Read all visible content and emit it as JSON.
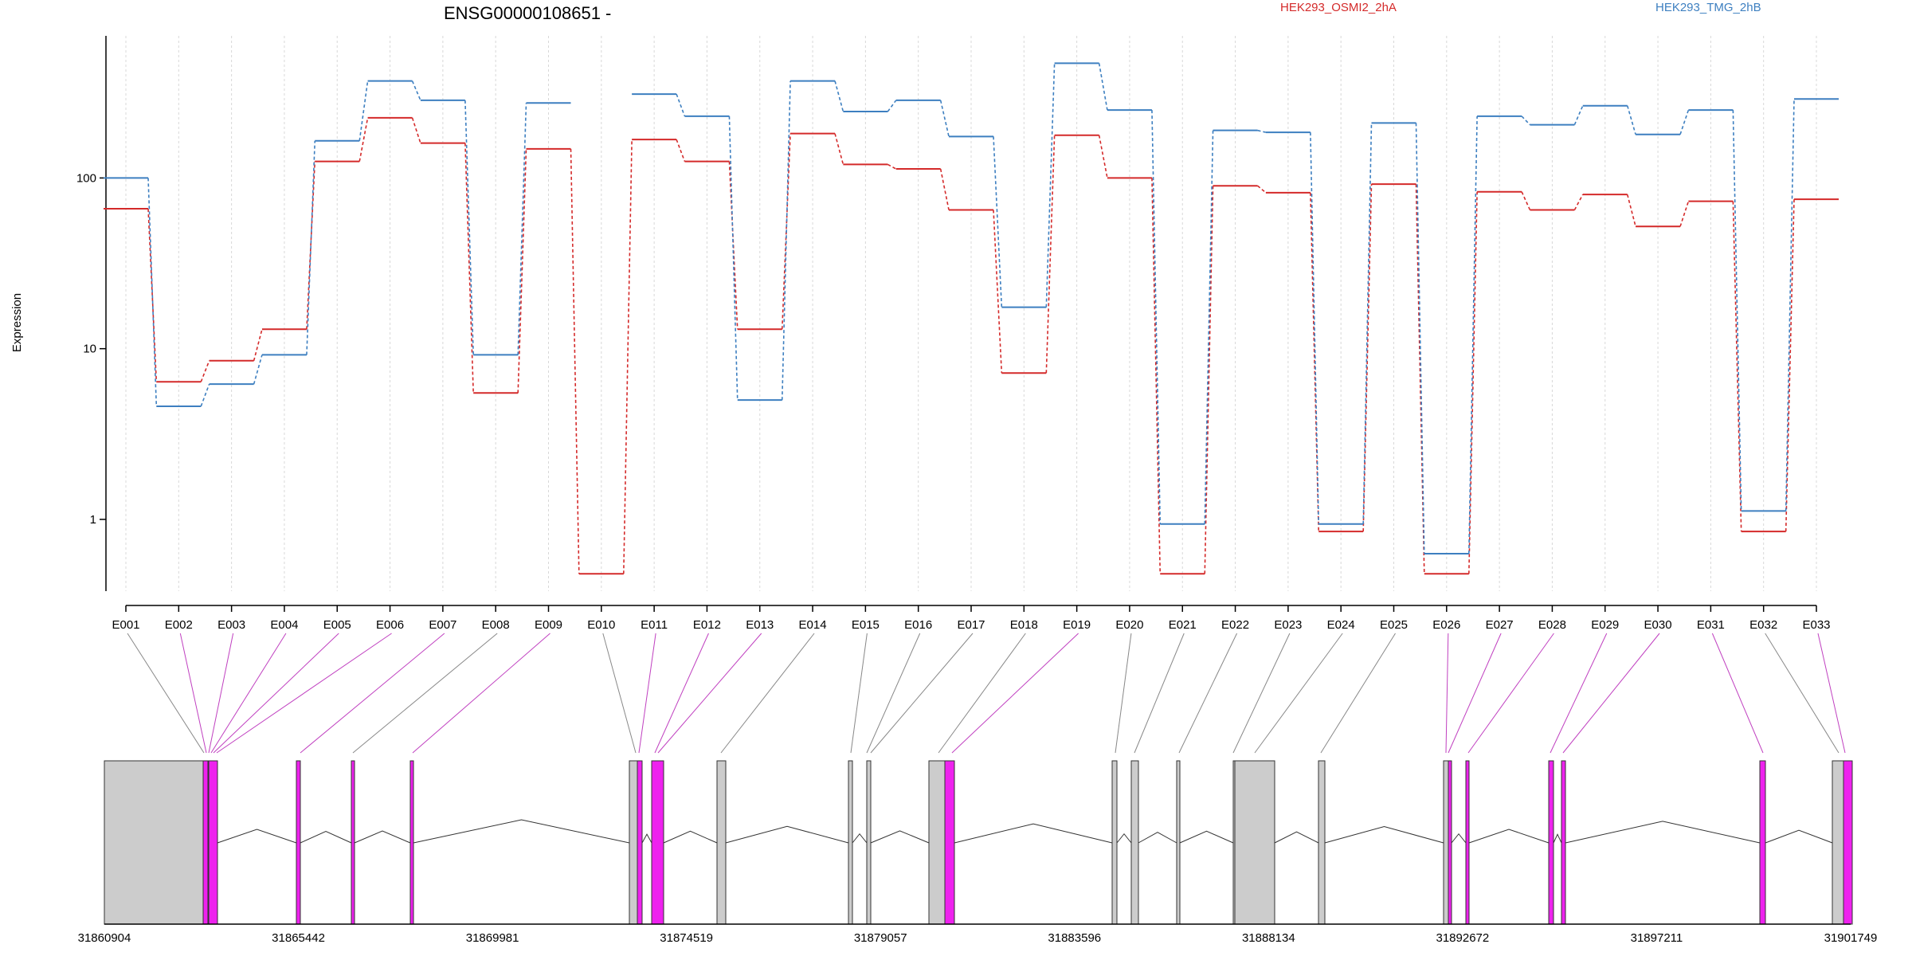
{
  "chart_data": {
    "type": "line",
    "title": "ENSG00000108651 -",
    "ylabel": "Expression",
    "yscale": "log",
    "ylim": [
      0.38,
      680
    ],
    "yticks": [
      1,
      10,
      100
    ],
    "categories": [
      "E001",
      "E002",
      "E003",
      "E004",
      "E005",
      "E006",
      "E007",
      "E008",
      "E009",
      "E010",
      "E011",
      "E012",
      "E013",
      "E014",
      "E015",
      "E016",
      "E017",
      "E018",
      "E019",
      "E020",
      "E021",
      "E022",
      "E023",
      "E024",
      "E025",
      "E026",
      "E027",
      "E028",
      "E029",
      "E030",
      "E031",
      "E032",
      "E033"
    ],
    "series": [
      {
        "name": "HEK293_OSMI2_2hA",
        "color": "#d42a2a",
        "values": [
          66,
          6.4,
          8.5,
          13,
          125,
          225,
          160,
          5.5,
          148,
          0.48,
          168,
          125,
          13,
          182,
          120,
          113,
          65,
          7.2,
          178,
          100,
          0.48,
          90,
          82,
          0.85,
          92,
          0.48,
          83,
          65,
          80,
          52,
          73,
          0.85,
          75
        ]
      },
      {
        "name": "HEK293_TMG_2hB",
        "color": "#3d7fc0",
        "values": [
          100,
          4.6,
          6.2,
          9.2,
          165,
          370,
          285,
          9.2,
          275,
          null,
          310,
          230,
          5,
          370,
          245,
          285,
          175,
          17.5,
          470,
          250,
          0.94,
          190,
          185,
          0.94,
          210,
          0.63,
          230,
          205,
          265,
          180,
          250,
          1.12,
          290
        ]
      }
    ],
    "gene_model": {
      "coordinate_ticks": [
        "31860904",
        "31865442",
        "31869981",
        "31874519",
        "31879057",
        "31883596",
        "31888134",
        "31892672",
        "31897211",
        "31901749"
      ],
      "exon_colors": {
        "normal": "#cccccc",
        "highlight": "#ee22ee"
      },
      "exon_highlighted": [
        false,
        true,
        true,
        true,
        true,
        true,
        true,
        false,
        true,
        false,
        true,
        true,
        true,
        false,
        false,
        false,
        false,
        false,
        true,
        false,
        false,
        false,
        false,
        false,
        false,
        true,
        true,
        true,
        true,
        true,
        true,
        false,
        true
      ]
    }
  }
}
